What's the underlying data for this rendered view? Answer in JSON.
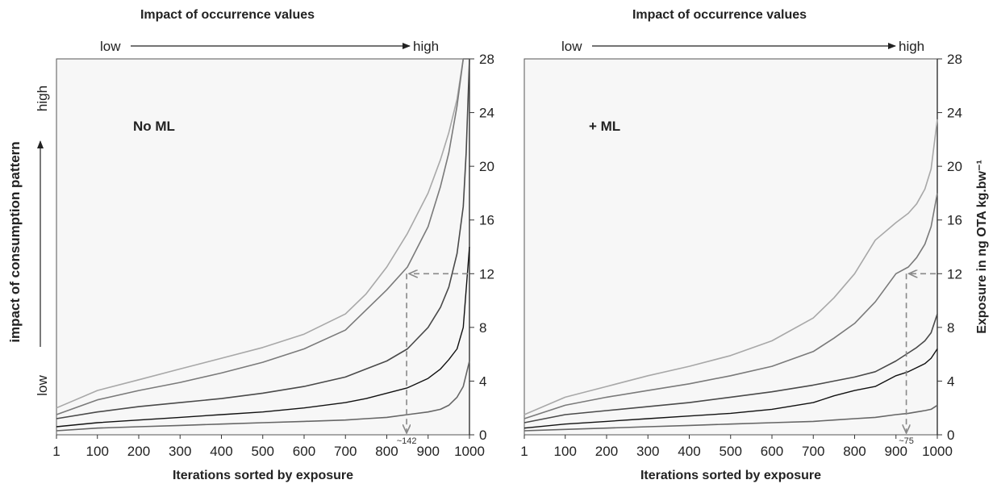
{
  "y_axis_left": {
    "label": "impact of consumption pattern",
    "low": "low",
    "high": "high"
  },
  "chart_data": [
    {
      "type": "line",
      "title": "Impact of occurrence values",
      "top_low": "low",
      "top_high": "high",
      "panel_label": "No ML",
      "xlabel": "Iterations sorted by exposure",
      "ylabel": "Exposure in ng OTA kg.bw⁻¹",
      "x_ticks": [
        1,
        100,
        200,
        300,
        400,
        500,
        600,
        700,
        800,
        900,
        1000
      ],
      "y_ticks": [
        0,
        4,
        8,
        12,
        16,
        20,
        24,
        28
      ],
      "xlim": [
        1,
        1000
      ],
      "ylim": [
        0,
        28
      ],
      "colors": [
        "#a8a8a8",
        "#7a7a7a",
        "#4a4a4a",
        "#111111",
        "#666666",
        "#9a9a9a"
      ],
      "series": [
        {
          "x": [
            1,
            100,
            200,
            300,
            400,
            500,
            600,
            700,
            750,
            800,
            850,
            900,
            930,
            950,
            970,
            985,
            1000
          ],
          "y": [
            2.0,
            3.3,
            4.1,
            4.9,
            5.7,
            6.5,
            7.5,
            9.0,
            10.5,
            12.5,
            15.0,
            18.0,
            20.5,
            22.5,
            25.0,
            28.0,
            28.0
          ]
        },
        {
          "x": [
            1,
            100,
            200,
            300,
            400,
            500,
            600,
            700,
            750,
            800,
            850,
            900,
            930,
            950,
            970,
            985,
            1000
          ],
          "y": [
            1.5,
            2.6,
            3.3,
            3.9,
            4.6,
            5.4,
            6.4,
            7.8,
            9.3,
            10.8,
            12.5,
            15.5,
            18.5,
            21.0,
            24.5,
            28.0,
            28.0
          ]
        },
        {
          "x": [
            1,
            100,
            200,
            300,
            400,
            500,
            600,
            700,
            750,
            800,
            850,
            900,
            930,
            950,
            970,
            985,
            992,
            1000
          ],
          "y": [
            1.2,
            1.7,
            2.1,
            2.4,
            2.7,
            3.1,
            3.6,
            4.3,
            4.9,
            5.5,
            6.4,
            8.0,
            9.5,
            11.0,
            13.5,
            17.0,
            21.0,
            28.0
          ]
        },
        {
          "x": [
            1,
            100,
            200,
            300,
            400,
            500,
            600,
            700,
            750,
            800,
            850,
            900,
            930,
            950,
            970,
            985,
            1000
          ],
          "y": [
            0.6,
            0.9,
            1.1,
            1.3,
            1.5,
            1.7,
            2.0,
            2.4,
            2.7,
            3.1,
            3.5,
            4.2,
            4.9,
            5.6,
            6.4,
            8.0,
            14.0
          ]
        },
        {
          "x": [
            1,
            100,
            200,
            300,
            400,
            500,
            600,
            700,
            750,
            800,
            850,
            900,
            930,
            950,
            970,
            985,
            1000
          ],
          "y": [
            0.3,
            0.5,
            0.6,
            0.7,
            0.8,
            0.9,
            1.0,
            1.1,
            1.2,
            1.3,
            1.5,
            1.7,
            1.9,
            2.2,
            2.8,
            3.6,
            5.5
          ]
        }
      ],
      "annotation": {
        "x": 848,
        "y": 12,
        "label": "~142"
      }
    },
    {
      "type": "line",
      "title": "Impact of occurrence values",
      "top_low": "low",
      "top_high": "high",
      "panel_label": "+ ML",
      "xlabel": "Iterations sorted by exposure",
      "ylabel": "Exposure in ng OTA kg.bw⁻¹",
      "x_ticks": [
        1,
        100,
        200,
        300,
        400,
        500,
        600,
        700,
        800,
        900,
        1000
      ],
      "y_ticks": [
        0,
        4,
        8,
        12,
        16,
        20,
        24,
        28
      ],
      "xlim": [
        1,
        1000
      ],
      "ylim": [
        0,
        28
      ],
      "colors": [
        "#a8a8a8",
        "#7a7a7a",
        "#4a4a4a",
        "#111111",
        "#666666",
        "#9a9a9a"
      ],
      "series": [
        {
          "x": [
            1,
            100,
            200,
            300,
            400,
            500,
            600,
            700,
            750,
            800,
            850,
            900,
            930,
            950,
            970,
            985,
            1000
          ],
          "y": [
            1.5,
            2.8,
            3.6,
            4.4,
            5.1,
            5.9,
            7.0,
            8.7,
            10.2,
            12.0,
            14.5,
            15.8,
            16.5,
            17.2,
            18.3,
            19.8,
            23.5
          ]
        },
        {
          "x": [
            1,
            100,
            200,
            300,
            400,
            500,
            600,
            700,
            750,
            800,
            850,
            900,
            930,
            950,
            970,
            985,
            1000
          ],
          "y": [
            1.2,
            2.2,
            2.8,
            3.3,
            3.8,
            4.4,
            5.1,
            6.2,
            7.2,
            8.3,
            9.9,
            12.0,
            12.5,
            13.2,
            14.2,
            15.5,
            18.0
          ]
        },
        {
          "x": [
            1,
            100,
            200,
            300,
            400,
            500,
            600,
            700,
            750,
            800,
            850,
            900,
            930,
            950,
            970,
            985,
            1000
          ],
          "y": [
            0.9,
            1.5,
            1.8,
            2.1,
            2.4,
            2.8,
            3.2,
            3.7,
            4.0,
            4.3,
            4.7,
            5.5,
            6.1,
            6.5,
            7.0,
            7.6,
            9.0
          ]
        },
        {
          "x": [
            1,
            100,
            200,
            300,
            400,
            500,
            600,
            700,
            750,
            800,
            850,
            900,
            930,
            950,
            970,
            985,
            1000
          ],
          "y": [
            0.5,
            0.8,
            1.0,
            1.2,
            1.4,
            1.6,
            1.9,
            2.4,
            2.9,
            3.3,
            3.6,
            4.4,
            4.7,
            5.0,
            5.3,
            5.7,
            6.4
          ]
        },
        {
          "x": [
            1,
            100,
            200,
            300,
            400,
            500,
            600,
            700,
            750,
            800,
            850,
            900,
            930,
            950,
            970,
            985,
            1000
          ],
          "y": [
            0.3,
            0.4,
            0.5,
            0.6,
            0.7,
            0.8,
            0.9,
            1.0,
            1.1,
            1.2,
            1.3,
            1.5,
            1.6,
            1.7,
            1.8,
            1.9,
            2.2
          ]
        }
      ],
      "annotation": {
        "x": 925,
        "y": 12,
        "label": "~75"
      }
    }
  ]
}
